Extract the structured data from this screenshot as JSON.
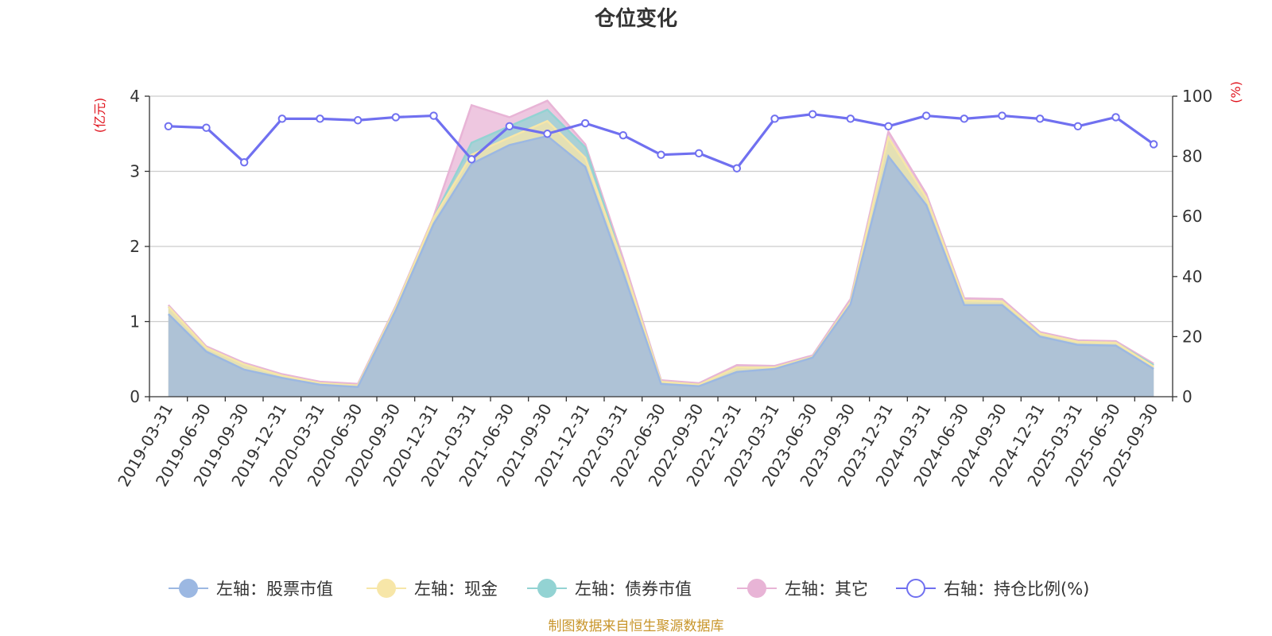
{
  "chart_data": {
    "type": "area",
    "title": "仓位变化",
    "left_axis": {
      "unit": "(亿元)",
      "ylim": [
        0,
        4
      ],
      "ticks": [
        "0",
        "1",
        "2",
        "3",
        "4"
      ]
    },
    "right_axis": {
      "unit": "(%)",
      "ylim": [
        0,
        100
      ],
      "ticks": [
        "0",
        "20",
        "40",
        "60",
        "80",
        "100"
      ]
    },
    "grid": true,
    "categories": [
      "2019-03-31",
      "2019-06-30",
      "2019-09-30",
      "2019-12-31",
      "2020-03-31",
      "2020-06-30",
      "2020-09-30",
      "2020-12-31",
      "2021-03-31",
      "2021-06-30",
      "2021-09-30",
      "2021-12-31",
      "2022-03-31",
      "2022-06-30",
      "2022-09-30",
      "2022-12-31",
      "2023-03-31",
      "2023-06-30",
      "2023-09-30",
      "2023-12-31",
      "2024-03-31",
      "2024-06-30",
      "2024-09-30",
      "2024-12-31",
      "2025-03-31",
      "2025-06-30",
      "2025-09-30"
    ],
    "series": [
      {
        "name": "左轴：股票市值",
        "axis": "left",
        "stack": true,
        "color": "#9cb8e2",
        "values": [
          1.1,
          0.6,
          0.36,
          0.25,
          0.16,
          0.13,
          1.15,
          2.3,
          3.1,
          3.35,
          3.47,
          3.06,
          1.65,
          0.17,
          0.14,
          0.33,
          0.37,
          0.52,
          1.23,
          3.2,
          2.55,
          1.22,
          1.22,
          0.8,
          0.69,
          0.68,
          0.37
        ]
      },
      {
        "name": "左轴：现金",
        "axis": "left",
        "stack": true,
        "color": "#f7e6a8",
        "values": [
          0.1,
          0.05,
          0.07,
          0.03,
          0.02,
          0.02,
          0.04,
          0.08,
          0.12,
          0.1,
          0.2,
          0.12,
          0.12,
          0.03,
          0.02,
          0.06,
          0.02,
          0.01,
          0.03,
          0.25,
          0.1,
          0.06,
          0.05,
          0.04,
          0.04,
          0.04,
          0.03
        ]
      },
      {
        "name": "左轴：债券市值",
        "axis": "left",
        "stack": true,
        "color": "#93d3d3",
        "values": [
          0,
          0,
          0,
          0,
          0,
          0,
          0,
          0,
          0.16,
          0.15,
          0.15,
          0.14,
          0,
          0,
          0,
          0,
          0,
          0,
          0,
          0,
          0,
          0,
          0,
          0,
          0,
          0,
          0.02
        ]
      },
      {
        "name": "左轴：其它",
        "axis": "left",
        "stack": true,
        "color": "#e8b4d6",
        "values": [
          0.02,
          0.02,
          0.02,
          0.02,
          0.02,
          0.02,
          0.02,
          0.02,
          0.5,
          0.12,
          0.12,
          0.04,
          0.07,
          0.02,
          0.02,
          0.03,
          0.02,
          0.02,
          0.04,
          0.08,
          0.05,
          0.03,
          0.03,
          0.02,
          0.02,
          0.02,
          0.02
        ]
      },
      {
        "name": "右轴：持仓比例(%)",
        "axis": "right",
        "type": "line",
        "color": "#7070f0",
        "values": [
          90,
          89.5,
          78,
          92.5,
          92.5,
          92,
          93,
          93.5,
          79,
          90,
          87.5,
          91,
          87,
          80.5,
          81,
          76,
          92.5,
          94,
          92.5,
          90,
          93.5,
          92.5,
          93.5,
          92.5,
          90,
          93,
          84
        ]
      }
    ],
    "legend": {
      "position": "bottom"
    },
    "source": "制图数据来自恒生聚源数据库"
  }
}
